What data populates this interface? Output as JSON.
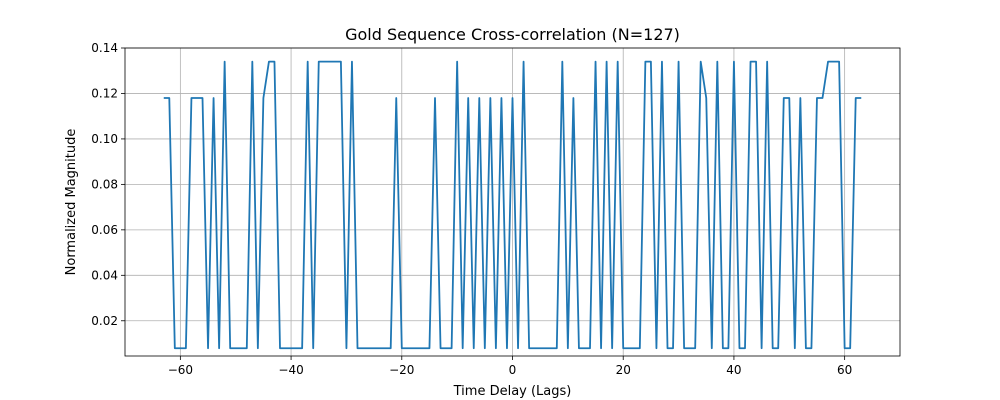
{
  "chart_data": {
    "type": "line",
    "title": "Gold Sequence Cross-correlation (N=127)",
    "xlabel": "Time Delay (Lags)",
    "ylabel": "Normalized Magnitude",
    "xlim": [
      -70,
      70
    ],
    "ylim": [
      0.0045,
      0.14
    ],
    "xticks": [
      -60,
      -40,
      -20,
      0,
      20,
      40,
      60
    ],
    "xtick_labels": [
      "−60",
      "−40",
      "−20",
      "0",
      "20",
      "40",
      "60"
    ],
    "yticks": [
      0.02,
      0.04,
      0.06,
      0.08,
      0.1,
      0.12,
      0.14
    ],
    "ytick_labels": [
      "0.02",
      "0.04",
      "0.06",
      "0.08",
      "0.10",
      "0.12",
      "0.14"
    ],
    "grid": true,
    "legend": "none",
    "series_color": "#1f77b4",
    "series": [
      {
        "x": [
          -63,
          -62,
          -61,
          -60,
          -59,
          -58,
          -57,
          -56,
          -55,
          -54,
          -53,
          -52,
          -51,
          -50,
          -49,
          -48,
          -47,
          -46,
          -45,
          -44,
          -43,
          -42,
          -41,
          -40,
          -39,
          -38,
          -37,
          -36,
          -35,
          -34,
          -33,
          -32,
          -31,
          -30,
          -29,
          -28,
          -27,
          -26,
          -25,
          -24,
          -23,
          -22,
          -21,
          -20,
          -19,
          -18,
          -17,
          -16,
          -15,
          -14,
          -13,
          -12,
          -11,
          -10,
          -9,
          -8,
          -7,
          -6,
          -5,
          -4,
          -3,
          -2,
          -1,
          0,
          1,
          2,
          3,
          4,
          5,
          6,
          7,
          8,
          9,
          10,
          11,
          12,
          13,
          14,
          15,
          16,
          17,
          18,
          19,
          20,
          21,
          22,
          23,
          24,
          25,
          26,
          27,
          28,
          29,
          30,
          31,
          32,
          33,
          34,
          35,
          36,
          37,
          38,
          39,
          40,
          41,
          42,
          43,
          44,
          45,
          46,
          47,
          48,
          49,
          50,
          51,
          52,
          53,
          54,
          55,
          56,
          57,
          58,
          59,
          60,
          61,
          62,
          63
        ],
        "values": [
          0.118,
          0.118,
          0.0079,
          0.0079,
          0.0079,
          0.118,
          0.118,
          0.118,
          0.0079,
          0.118,
          0.0079,
          0.134,
          0.0079,
          0.0079,
          0.0079,
          0.0079,
          0.134,
          0.0079,
          0.118,
          0.134,
          0.134,
          0.0079,
          0.0079,
          0.0079,
          0.0079,
          0.0079,
          0.134,
          0.0079,
          0.134,
          0.134,
          0.134,
          0.134,
          0.134,
          0.0079,
          0.134,
          0.0079,
          0.0079,
          0.0079,
          0.0079,
          0.0079,
          0.0079,
          0.0079,
          0.118,
          0.0079,
          0.0079,
          0.0079,
          0.0079,
          0.0079,
          0.0079,
          0.118,
          0.0079,
          0.0079,
          0.0079,
          0.134,
          0.0079,
          0.118,
          0.0079,
          0.118,
          0.0079,
          0.118,
          0.0079,
          0.118,
          0.0079,
          0.118,
          0.0079,
          0.134,
          0.0079,
          0.0079,
          0.0079,
          0.0079,
          0.0079,
          0.0079,
          0.134,
          0.0079,
          0.118,
          0.0079,
          0.0079,
          0.0079,
          0.134,
          0.0079,
          0.134,
          0.0079,
          0.134,
          0.0079,
          0.0079,
          0.0079,
          0.0079,
          0.134,
          0.134,
          0.0079,
          0.134,
          0.0079,
          0.0079,
          0.134,
          0.0079,
          0.0079,
          0.0079,
          0.134,
          0.118,
          0.0079,
          0.134,
          0.0079,
          0.0079,
          0.134,
          0.0079,
          0.0079,
          0.134,
          0.134,
          0.0079,
          0.134,
          0.0079,
          0.0079,
          0.118,
          0.118,
          0.0079,
          0.118,
          0.0079,
          0.0079,
          0.118,
          0.118,
          0.134,
          0.134,
          0.134,
          0.0079,
          0.0079,
          0.118,
          0.118
        ]
      }
    ]
  }
}
